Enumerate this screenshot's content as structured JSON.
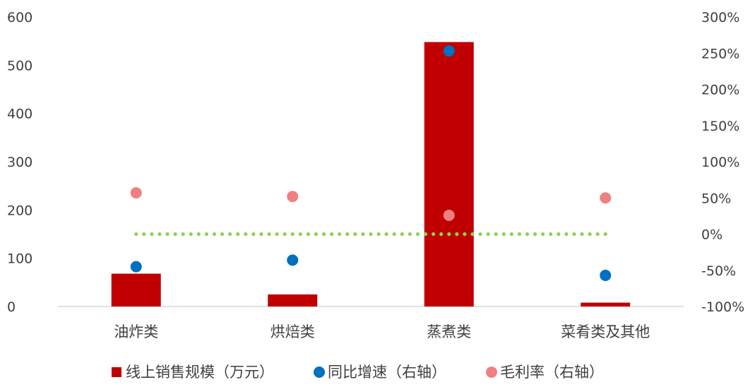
{
  "chart_data": {
    "type": "bar",
    "categories": [
      "油炸类",
      "烘焙类",
      "蒸煮类",
      "菜肴类及其他"
    ],
    "left_axis": {
      "range": [
        0,
        600
      ],
      "ticks": [
        "0",
        "100",
        "200",
        "300",
        "400",
        "500",
        "600"
      ]
    },
    "right_axis": {
      "range": [
        -100,
        300
      ],
      "ticks": [
        "-100%",
        "-50%",
        "0%",
        "50%",
        "100%",
        "150%",
        "200%",
        "250%",
        "300%"
      ]
    },
    "series": [
      {
        "name": "线上销售规模（万元）",
        "kind": "bar",
        "axis": "left",
        "color": "#C00000",
        "values": [
          68,
          25,
          548,
          8
        ]
      },
      {
        "name": "同比增速（右轴）",
        "kind": "scatter",
        "axis": "right",
        "color": "#0070C0",
        "values": [
          -45,
          -36,
          253,
          -57
        ]
      },
      {
        "name": "毛利率（右轴）",
        "kind": "scatter",
        "axis": "right",
        "color": "#F08080",
        "values": [
          57,
          52,
          26,
          50
        ]
      }
    ],
    "reference_line": {
      "axis": "right",
      "value": 0,
      "color": "#92D050",
      "style": "dotted"
    },
    "legend_position": "bottom"
  }
}
